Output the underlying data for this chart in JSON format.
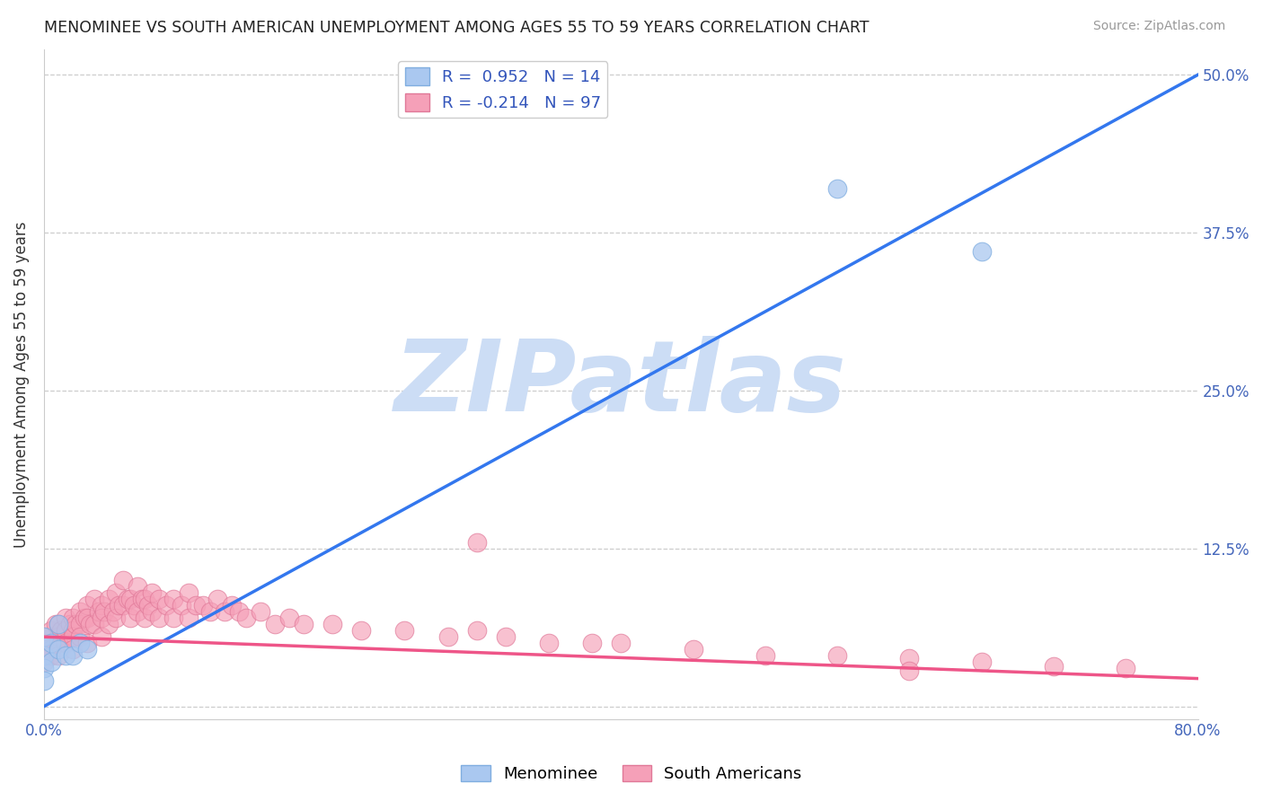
{
  "title": "MENOMINEE VS SOUTH AMERICAN UNEMPLOYMENT AMONG AGES 55 TO 59 YEARS CORRELATION CHART",
  "source_text": "Source: ZipAtlas.com",
  "ylabel": "Unemployment Among Ages 55 to 59 years",
  "xlabel": "",
  "xlim": [
    0.0,
    0.8
  ],
  "ylim": [
    -0.01,
    0.52
  ],
  "yticks": [
    0.0,
    0.125,
    0.25,
    0.375,
    0.5
  ],
  "ytick_labels_right": [
    "",
    "12.5%",
    "25.0%",
    "37.5%",
    "50.0%"
  ],
  "xticks": [
    0.0,
    0.8
  ],
  "xtick_labels": [
    "0.0%",
    "80.0%"
  ],
  "background_color": "#ffffff",
  "grid_color": "#c8c8c8",
  "watermark_text": "ZIPatlas",
  "watermark_color": "#ccddf5",
  "menominee_color": "#aac8f0",
  "menominee_edge_color": "#80aee0",
  "south_american_color": "#f5a0b8",
  "south_american_edge_color": "#e07898",
  "menominee_line_color": "#3377ee",
  "south_american_line_color": "#ee5588",
  "R_menominee": 0.952,
  "N_menominee": 14,
  "R_south_american": -0.214,
  "N_south_american": 97,
  "legend_label_menominee": "Menominee",
  "legend_label_south_american": "South Americans",
  "menominee_line_x0": 0.0,
  "menominee_line_y0": 0.0,
  "menominee_line_x1": 0.8,
  "menominee_line_y1": 0.5,
  "south_american_line_x0": 0.0,
  "south_american_line_y0": 0.055,
  "south_american_line_x1": 0.8,
  "south_american_line_y1": 0.022,
  "menominee_scatter_x": [
    0.0,
    0.0,
    0.0,
    0.005,
    0.005,
    0.01,
    0.01,
    0.015,
    0.02,
    0.025,
    0.03,
    0.55,
    0.65,
    0.0
  ],
  "menominee_scatter_y": [
    0.055,
    0.04,
    0.03,
    0.05,
    0.035,
    0.045,
    0.065,
    0.04,
    0.04,
    0.05,
    0.045,
    0.41,
    0.36,
    0.02
  ],
  "south_american_scatter_x": [
    0.0,
    0.0,
    0.0,
    0.0,
    0.0,
    0.005,
    0.005,
    0.005,
    0.005,
    0.008,
    0.01,
    0.01,
    0.01,
    0.01,
    0.012,
    0.015,
    0.015,
    0.015,
    0.018,
    0.02,
    0.02,
    0.02,
    0.02,
    0.022,
    0.025,
    0.025,
    0.025,
    0.028,
    0.03,
    0.03,
    0.03,
    0.032,
    0.035,
    0.035,
    0.038,
    0.04,
    0.04,
    0.04,
    0.042,
    0.045,
    0.045,
    0.048,
    0.05,
    0.05,
    0.052,
    0.055,
    0.055,
    0.058,
    0.06,
    0.06,
    0.062,
    0.065,
    0.065,
    0.068,
    0.07,
    0.07,
    0.072,
    0.075,
    0.075,
    0.08,
    0.08,
    0.085,
    0.09,
    0.09,
    0.095,
    0.1,
    0.1,
    0.105,
    0.11,
    0.115,
    0.12,
    0.125,
    0.13,
    0.135,
    0.14,
    0.15,
    0.16,
    0.17,
    0.18,
    0.2,
    0.22,
    0.25,
    0.28,
    0.3,
    0.32,
    0.35,
    0.38,
    0.4,
    0.45,
    0.5,
    0.55,
    0.6,
    0.65,
    0.7,
    0.75,
    0.3,
    0.6
  ],
  "south_american_scatter_y": [
    0.055,
    0.05,
    0.045,
    0.04,
    0.035,
    0.06,
    0.05,
    0.045,
    0.04,
    0.065,
    0.065,
    0.055,
    0.05,
    0.04,
    0.06,
    0.07,
    0.06,
    0.05,
    0.065,
    0.07,
    0.06,
    0.055,
    0.045,
    0.065,
    0.075,
    0.065,
    0.055,
    0.07,
    0.08,
    0.07,
    0.05,
    0.065,
    0.085,
    0.065,
    0.075,
    0.08,
    0.07,
    0.055,
    0.075,
    0.085,
    0.065,
    0.075,
    0.09,
    0.07,
    0.08,
    0.1,
    0.08,
    0.085,
    0.085,
    0.07,
    0.08,
    0.095,
    0.075,
    0.085,
    0.085,
    0.07,
    0.08,
    0.09,
    0.075,
    0.085,
    0.07,
    0.08,
    0.085,
    0.07,
    0.08,
    0.09,
    0.07,
    0.08,
    0.08,
    0.075,
    0.085,
    0.075,
    0.08,
    0.075,
    0.07,
    0.075,
    0.065,
    0.07,
    0.065,
    0.065,
    0.06,
    0.06,
    0.055,
    0.06,
    0.055,
    0.05,
    0.05,
    0.05,
    0.045,
    0.04,
    0.04,
    0.038,
    0.035,
    0.032,
    0.03,
    0.13,
    0.028
  ]
}
